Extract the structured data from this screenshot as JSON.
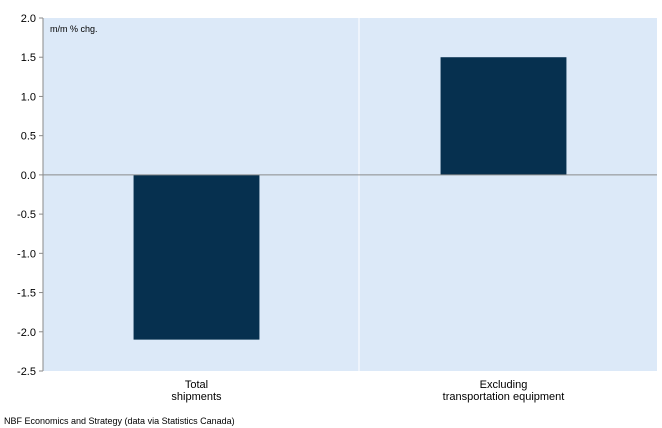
{
  "chart_data": {
    "type": "bar",
    "categories": [
      [
        "Total",
        "shipments"
      ],
      [
        "Excluding",
        "transportation equipment"
      ]
    ],
    "values": [
      -2.1,
      1.5
    ],
    "unit_label": "m/m % chg.",
    "ylim": [
      -2.5,
      2.0
    ],
    "yticks": [
      2.0,
      1.5,
      1.0,
      0.5,
      0.0,
      -0.5,
      -1.0,
      -1.5,
      -2.0,
      -2.5
    ],
    "grid": false,
    "legend": "none",
    "colors": {
      "plot_background": "#dce9f8",
      "bar": "#06304f",
      "divider": "#ffffff"
    }
  },
  "source": "NBF Economics and Strategy (data via Statistics Canada)"
}
